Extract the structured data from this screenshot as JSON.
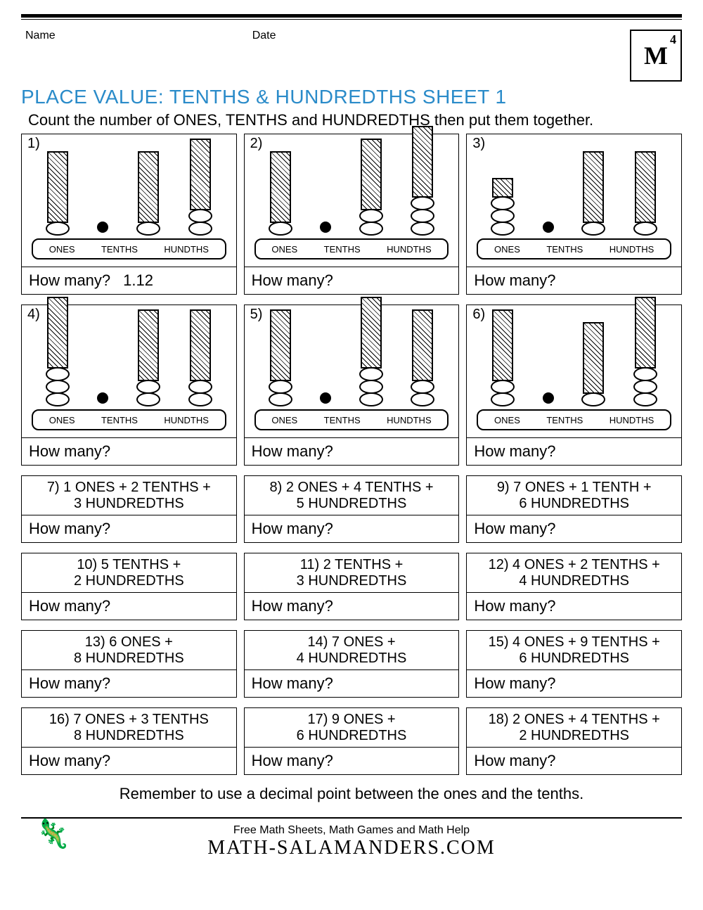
{
  "header": {
    "name_label": "Name",
    "date_label": "Date",
    "grade": "4",
    "logo": "M"
  },
  "title": "PLACE VALUE: TENTHS & HUNDREDTHS SHEET 1",
  "instruction": "Count the number of ONES, TENTHS and HUNDREDTHS then put them together.",
  "tray_labels": [
    "ONES",
    "TENTHS",
    "HUNDTHS"
  ],
  "how": "How many?",
  "visual": [
    {
      "n": "1)",
      "ovals": [
        1,
        1,
        2
      ],
      "blocks": [
        1,
        1,
        1
      ],
      "ans": "1.12"
    },
    {
      "n": "2)",
      "ovals": [
        1,
        2,
        3
      ],
      "blocks": [
        1,
        1,
        1
      ],
      "ans": ""
    },
    {
      "n": "3)",
      "ovals": [
        3,
        1,
        1
      ],
      "blocks": [
        0,
        1,
        1
      ],
      "small": [
        1,
        0,
        0
      ],
      "ans": ""
    },
    {
      "n": "4)",
      "ovals": [
        3,
        2,
        2
      ],
      "blocks": [
        1,
        1,
        1
      ],
      "ans": ""
    },
    {
      "n": "5)",
      "ovals": [
        2,
        3,
        2
      ],
      "blocks": [
        1,
        1,
        1
      ],
      "ans": ""
    },
    {
      "n": "6)",
      "ovals": [
        2,
        1,
        3
      ],
      "blocks": [
        1,
        1,
        1
      ],
      "ans": ""
    }
  ],
  "text_rows": [
    [
      {
        "n": "7)",
        "l1": "1 ONES + 2 TENTHS +",
        "l2": "3 HUNDREDTHS"
      },
      {
        "n": "8)",
        "l1": "2 ONES + 4 TENTHS +",
        "l2": "5 HUNDREDTHS"
      },
      {
        "n": "9)",
        "l1": "7 ONES + 1 TENTH +",
        "l2": "6 HUNDREDTHS"
      }
    ],
    [
      {
        "n": "10)",
        "l1": "5 TENTHS +",
        "l2": "2 HUNDREDTHS"
      },
      {
        "n": "11)",
        "l1": "2 TENTHS +",
        "l2": "3 HUNDREDTHS"
      },
      {
        "n": "12)",
        "l1": "4 ONES + 2 TENTHS +",
        "l2": "4 HUNDREDTHS"
      }
    ],
    [
      {
        "n": "13)",
        "l1": "6 ONES +",
        "l2": "8 HUNDREDTHS"
      },
      {
        "n": "14)",
        "l1": "7 ONES +",
        "l2": "4 HUNDREDTHS"
      },
      {
        "n": "15)",
        "l1": "4 ONES + 9 TENTHS +",
        "l2": "6 HUNDREDTHS"
      }
    ],
    [
      {
        "n": "16)",
        "l1": "7 ONES + 3 TENTHS",
        "l2": "8 HUNDREDTHS"
      },
      {
        "n": "17)",
        "l1": "9 ONES +",
        "l2": "6 HUNDREDTHS"
      },
      {
        "n": "18)",
        "l1": "2 ONES + 4 TENTHS +",
        "l2": "2 HUNDREDTHS"
      }
    ]
  ],
  "reminder": "Remember to use a decimal point between the ones and the tenths.",
  "footer": {
    "tag": "Free Math Sheets, Math Games and Math Help",
    "site": "ATH-SALAMANDERS.COM",
    "salamander": "🦎"
  },
  "colors": {
    "title": "#2a8bc9",
    "border": "#000000",
    "bg": "#ffffff"
  }
}
